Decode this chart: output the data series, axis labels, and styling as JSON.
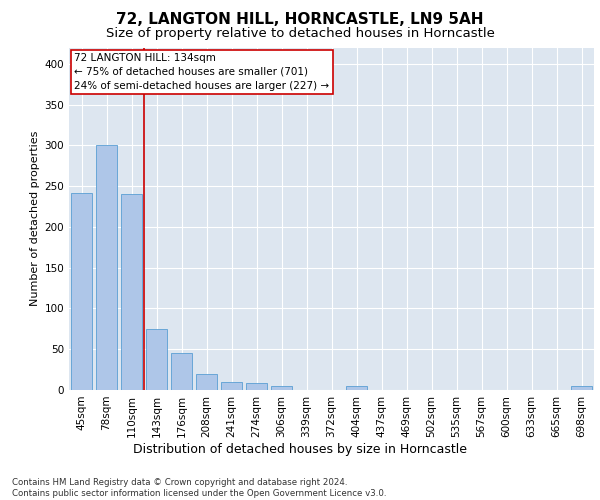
{
  "title1": "72, LANGTON HILL, HORNCASTLE, LN9 5AH",
  "title2": "Size of property relative to detached houses in Horncastle",
  "xlabel": "Distribution of detached houses by size in Horncastle",
  "ylabel": "Number of detached properties",
  "categories": [
    "45sqm",
    "78sqm",
    "110sqm",
    "143sqm",
    "176sqm",
    "208sqm",
    "241sqm",
    "274sqm",
    "306sqm",
    "339sqm",
    "372sqm",
    "404sqm",
    "437sqm",
    "469sqm",
    "502sqm",
    "535sqm",
    "567sqm",
    "600sqm",
    "633sqm",
    "665sqm",
    "698sqm"
  ],
  "values": [
    241,
    300,
    240,
    75,
    45,
    20,
    10,
    8,
    5,
    0,
    0,
    5,
    0,
    0,
    0,
    0,
    0,
    0,
    0,
    0,
    5
  ],
  "bar_color": "#aec6e8",
  "bar_edge_color": "#5a9fd4",
  "vline_x": 2.5,
  "vline_color": "#cc0000",
  "annotation_text": "72 LANGTON HILL: 134sqm\n← 75% of detached houses are smaller (701)\n24% of semi-detached houses are larger (227) →",
  "annotation_box_color": "#ffffff",
  "annotation_box_edge": "#cc0000",
  "ylim": [
    0,
    420
  ],
  "yticks": [
    0,
    50,
    100,
    150,
    200,
    250,
    300,
    350,
    400
  ],
  "background_color": "#dde6f0",
  "footnote": "Contains HM Land Registry data © Crown copyright and database right 2024.\nContains public sector information licensed under the Open Government Licence v3.0.",
  "title1_fontsize": 11,
  "title2_fontsize": 9.5,
  "xlabel_fontsize": 9,
  "ylabel_fontsize": 8,
  "tick_fontsize": 7.5,
  "annotation_fontsize": 7.5
}
